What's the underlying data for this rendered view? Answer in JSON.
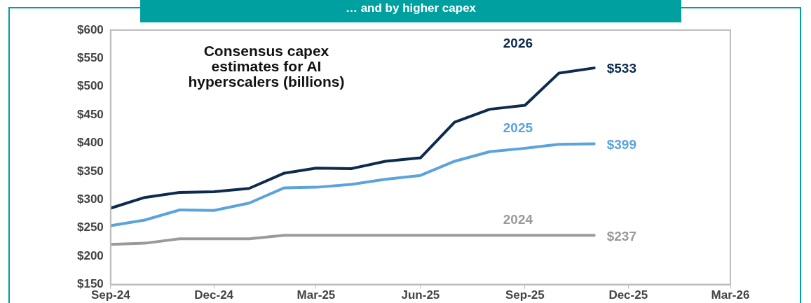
{
  "chart_data": {
    "type": "line",
    "title": "… and by higher capex",
    "subtitle": "Consensus capex estimates for AI hyperscalers (billions)",
    "x": [
      "2024-09",
      "2024-10",
      "2024-11",
      "2024-12",
      "2025-01",
      "2025-02",
      "2025-03",
      "2025-04",
      "2025-05",
      "2025-06",
      "2025-07",
      "2025-08",
      "2025-09",
      "2025-10",
      "2025-11"
    ],
    "series": [
      {
        "name": "2026",
        "color": "#0d2b4e",
        "values": [
          285,
          304,
          313,
          314,
          320,
          347,
          356,
          355,
          368,
          374,
          437,
          460,
          467,
          524,
          533
        ],
        "value_labels": [
          null,
          null,
          null,
          null,
          null,
          null,
          null,
          null,
          null,
          null,
          null,
          null,
          null,
          null,
          "$533"
        ]
      },
      {
        "name": "2025",
        "color": "#5ba3dc",
        "values": [
          254,
          264,
          282,
          281,
          294,
          321,
          322,
          327,
          336,
          343,
          368,
          385,
          391,
          398,
          399
        ],
        "value_labels": [
          null,
          null,
          null,
          null,
          null,
          null,
          null,
          null,
          null,
          null,
          null,
          null,
          null,
          null,
          "$399"
        ]
      },
      {
        "name": "2024",
        "color": "#9a9a9a",
        "values": [
          221,
          223,
          231,
          231,
          231,
          237,
          237,
          237,
          237,
          237,
          237,
          237,
          237,
          237,
          237
        ],
        "value_labels": [
          null,
          null,
          null,
          null,
          null,
          null,
          null,
          null,
          null,
          null,
          null,
          null,
          null,
          null,
          "$237"
        ]
      }
    ],
    "xlim": [
      "2024-09",
      "2026-03"
    ],
    "xticks": [
      {
        "value": "2024-09",
        "label": "Sep-24"
      },
      {
        "value": "2024-12",
        "label": "Dec-24"
      },
      {
        "value": "2025-03",
        "label": "Mar-25"
      },
      {
        "value": "2025-06",
        "label": "Jun-25"
      },
      {
        "value": "2025-09",
        "label": "Sep-25"
      },
      {
        "value": "2025-12",
        "label": "Dec-25"
      },
      {
        "value": "2026-03",
        "label": "Mar-26"
      }
    ],
    "ylim": [
      150,
      600
    ],
    "yticks": [
      {
        "value": 150,
        "label": "$150"
      },
      {
        "value": 200,
        "label": "$200"
      },
      {
        "value": 250,
        "label": "$250"
      },
      {
        "value": 300,
        "label": "$300"
      },
      {
        "value": 350,
        "label": "$350"
      },
      {
        "value": 400,
        "label": "$400"
      },
      {
        "value": 450,
        "label": "$450"
      },
      {
        "value": 500,
        "label": "$500"
      },
      {
        "value": 550,
        "label": "$550"
      },
      {
        "value": 600,
        "label": "$600"
      }
    ],
    "grid": false,
    "legend": false,
    "marker": "none",
    "line_style": "solid"
  }
}
